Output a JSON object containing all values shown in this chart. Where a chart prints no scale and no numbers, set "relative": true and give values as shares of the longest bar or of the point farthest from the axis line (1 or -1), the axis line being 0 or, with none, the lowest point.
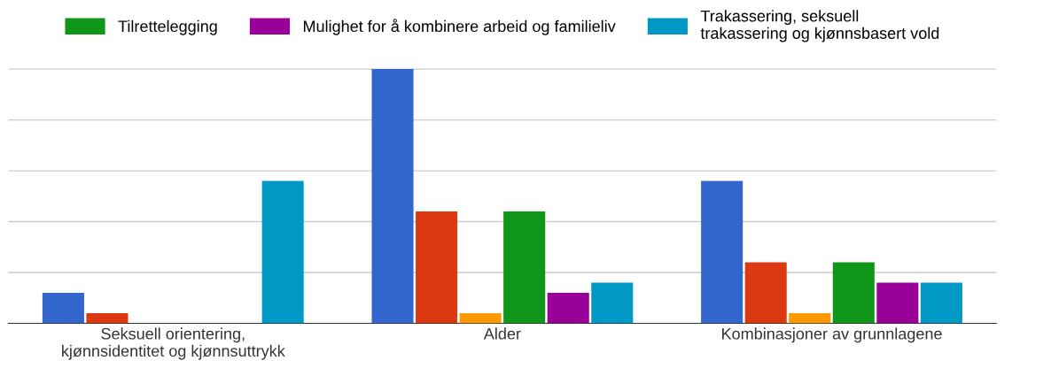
{
  "chart_data": {
    "type": "bar",
    "relative": true,
    "grid": "y",
    "legend": "top",
    "categories": [
      "Seksuell orientering,\nkjønnsidentitet og kjønnsuttrykk",
      "Alder",
      "Kombinasjoner av grunnlagene"
    ],
    "series": [
      {
        "color": "#3366cc",
        "values": [
          0.12,
          1,
          0.56
        ]
      },
      {
        "color": "#dc3912",
        "values": [
          0.04,
          0.44,
          0.24
        ]
      },
      {
        "color": "#ff9900",
        "values": [
          0,
          0.04,
          0.04
        ]
      },
      {
        "name": "Tilrettelegging",
        "color": "#109618",
        "values": [
          0,
          0.44,
          0.24
        ]
      },
      {
        "name": "Mulighet for å kombinere arbeid og familieliv",
        "color": "#990099",
        "values": [
          0,
          0.12,
          0.16
        ]
      },
      {
        "name": "Trakassering, seksuell\ntrakassering og kjønnsbasert vold",
        "color": "#0099c6",
        "values": [
          0.56,
          0.16,
          0.16
        ]
      }
    ]
  }
}
